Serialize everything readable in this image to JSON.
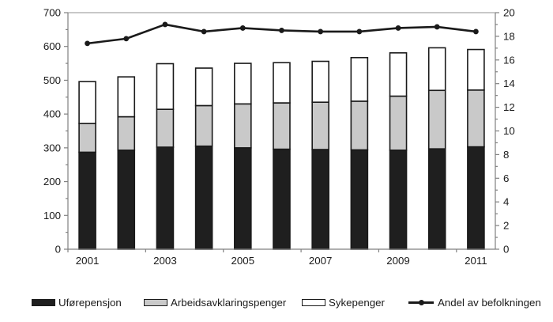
{
  "chart_data": {
    "type": "bar",
    "subtype": "stacked-bars-with-line-overlay",
    "categories": [
      "2001",
      "2002",
      "2003",
      "2004",
      "2005",
      "2006",
      "2007",
      "2008",
      "2009",
      "2010",
      "2011"
    ],
    "series": [
      {
        "name": "Uførepensjon",
        "kind": "bar",
        "color": "#1f1f1f",
        "values": [
          287,
          293,
          302,
          305,
          300,
          296,
          295,
          294,
          293,
          297,
          303
        ]
      },
      {
        "name": "Arbeidsavklaringspenger",
        "kind": "bar",
        "color": "#c9c9c9",
        "values": [
          85,
          99,
          112,
          120,
          130,
          137,
          140,
          144,
          160,
          173,
          168
        ]
      },
      {
        "name": "Sykepenger",
        "kind": "bar",
        "color": "#ffffff",
        "values": [
          124,
          118,
          135,
          111,
          120,
          119,
          121,
          129,
          128,
          126,
          120
        ]
      },
      {
        "name": "Andel av befolkningen",
        "kind": "line",
        "axis": "right",
        "color": "#1a1a1a",
        "values": [
          17.4,
          17.8,
          19.0,
          18.4,
          18.7,
          18.5,
          18.4,
          18.4,
          18.7,
          18.8,
          18.4
        ]
      }
    ],
    "stacked_totals": [
      496,
      510,
      549,
      536,
      550,
      552,
      556,
      567,
      581,
      596,
      591
    ],
    "left_axis": {
      "min": 0,
      "max": 700,
      "major_tick": 100,
      "minor_tick": 50,
      "tick_labels": [
        "0",
        "100",
        "200",
        "300",
        "400",
        "500",
        "600",
        "700"
      ]
    },
    "right_axis": {
      "min": 0,
      "max": 20,
      "major_tick": 2,
      "minor_tick": 1,
      "tick_labels": [
        "0",
        "2",
        "4",
        "6",
        "8",
        "10",
        "12",
        "14",
        "16",
        "18",
        "20"
      ]
    },
    "x_axis": {
      "label_every": 2,
      "visible_labels": [
        "2001",
        "2003",
        "2005",
        "2007",
        "2009",
        "2011"
      ]
    },
    "title": "",
    "xlabel": "",
    "ylabel": "",
    "legend_position": "bottom",
    "grid": "top-border-only",
    "style": {
      "axis_color": "#808080",
      "top_gridline_color": "#a8a8a8",
      "bar_border_color": "#1a1a1a",
      "text_color": "#1a1a1a"
    }
  }
}
